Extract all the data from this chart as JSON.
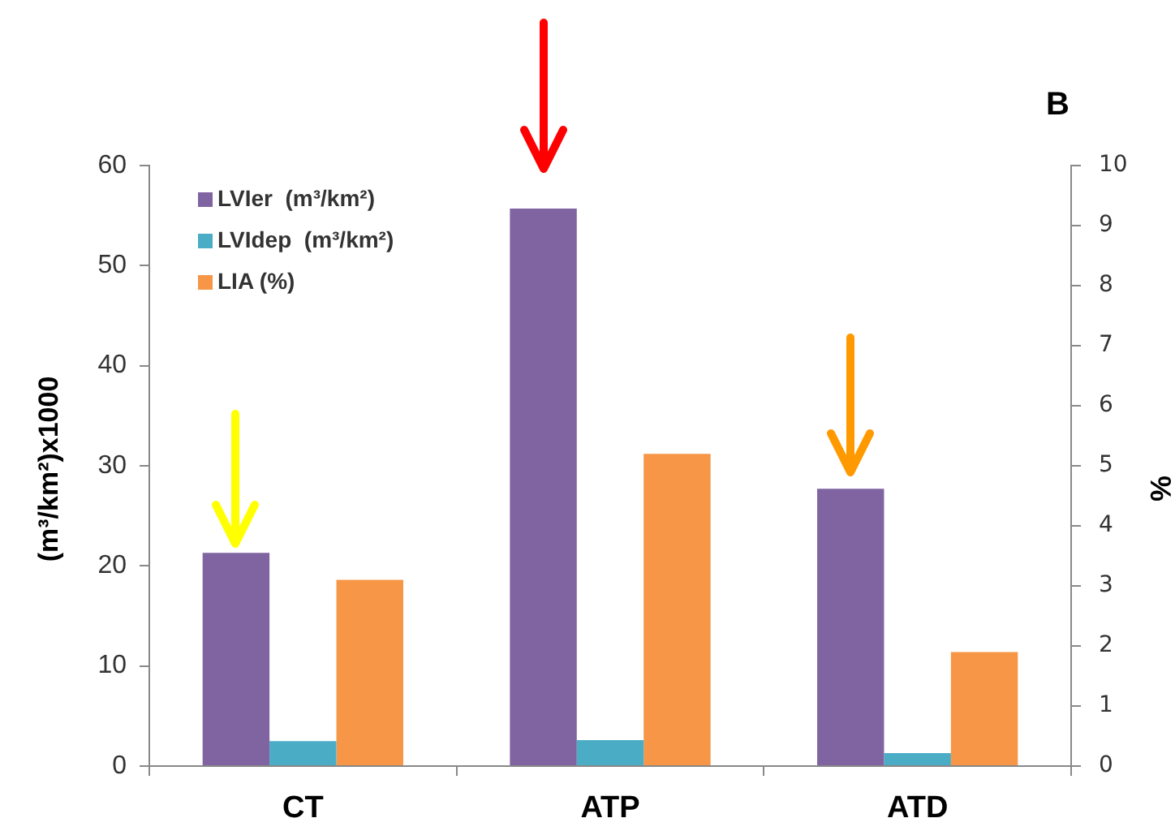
{
  "chart_data": {
    "type": "bar",
    "title": "B",
    "categories": [
      "CT",
      "ATP",
      "ATD"
    ],
    "series": [
      {
        "name": "LVIer  (m³/km²)",
        "color": "#8064a2",
        "values": [
          21.3,
          55.7,
          27.7
        ]
      },
      {
        "name": "LVIdep  (m³/km²)",
        "color": "#4bacc6",
        "values": [
          2.5,
          2.6,
          1.3
        ]
      },
      {
        "name": "LIA (%)",
        "color": "#f79646",
        "values": [
          3.1,
          5.2,
          1.9
        ],
        "axis": "y2"
      }
    ],
    "ylabel": "(m³/km²)x1000",
    "y2label": "%",
    "ylim": [
      0,
      60
    ],
    "yticks": [
      0,
      10,
      20,
      30,
      40,
      50,
      60
    ],
    "y2lim": [
      0,
      10
    ],
    "y2ticks": [
      0,
      1,
      2,
      3,
      4,
      5,
      6,
      7,
      8,
      9,
      10
    ],
    "grid": false,
    "legend": "top left"
  }
}
